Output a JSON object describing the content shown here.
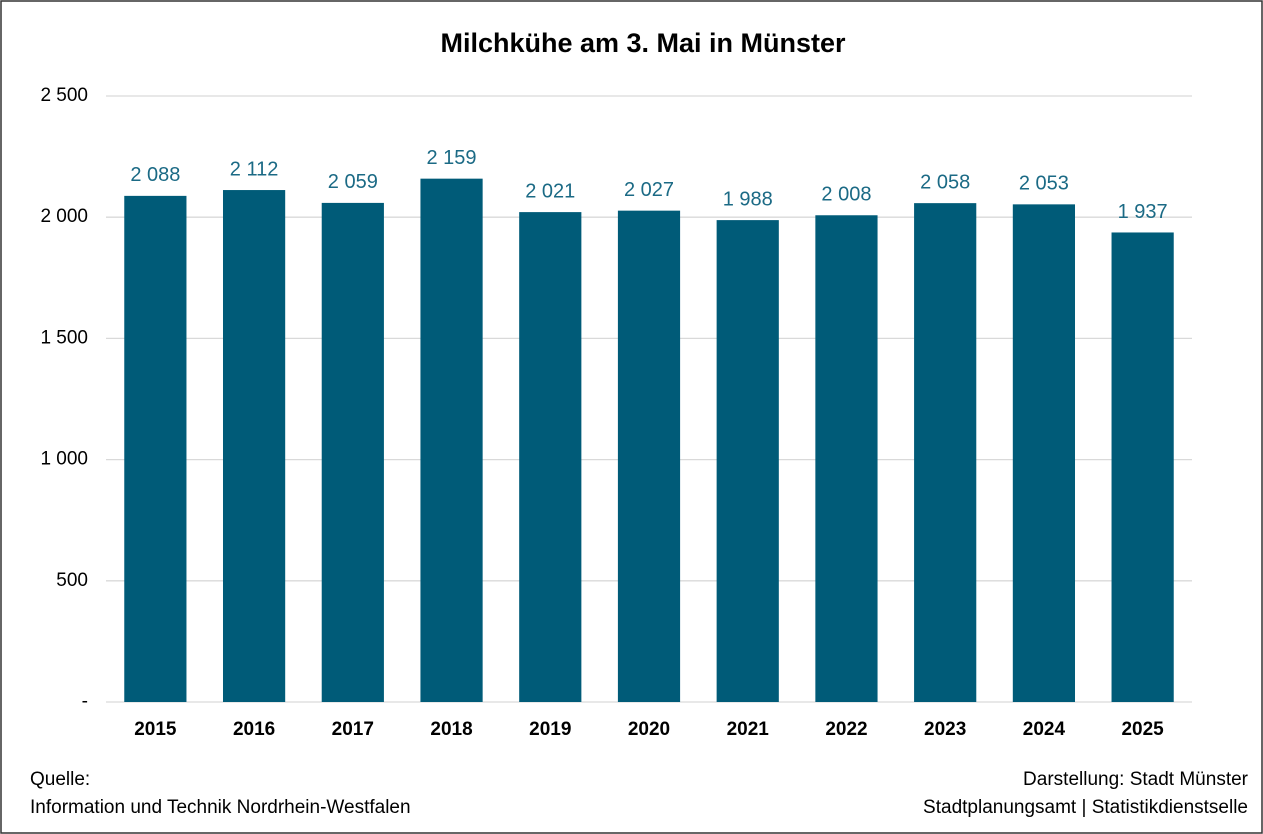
{
  "chart_data": {
    "type": "bar",
    "title": "Milchkühe am 3. Mai in Münster",
    "categories": [
      "2015",
      "2016",
      "2017",
      "2018",
      "2019",
      "2020",
      "2021",
      "2022",
      "2023",
      "2024",
      "2025"
    ],
    "values": [
      2088,
      2112,
      2059,
      2159,
      2021,
      2027,
      1988,
      2008,
      2058,
      2053,
      1937
    ],
    "value_labels": [
      "2 088",
      "2 112",
      "2 059",
      "2 159",
      "2 021",
      "2 027",
      "1 988",
      "2 008",
      "2 058",
      "2 053",
      "1 937"
    ],
    "color": "#005b78",
    "ylim": [
      0,
      2500
    ],
    "yticks": [
      {
        "value": 0,
        "label": "-"
      },
      500,
      {
        "value": 1000,
        "label": "1 000"
      },
      {
        "value": 1500,
        "label": "1 500"
      },
      {
        "value": 2000,
        "label": "2 000"
      },
      {
        "value": 2500,
        "label": "2 500"
      }
    ],
    "grid": true,
    "source_label": "Quelle:",
    "source": "Information und Technik Nordrhein-Westfalen",
    "credit_line1": "Darstellung: Stadt Münster",
    "credit_line2": "Stadtplanungsamt | Statistikdienstselle"
  }
}
